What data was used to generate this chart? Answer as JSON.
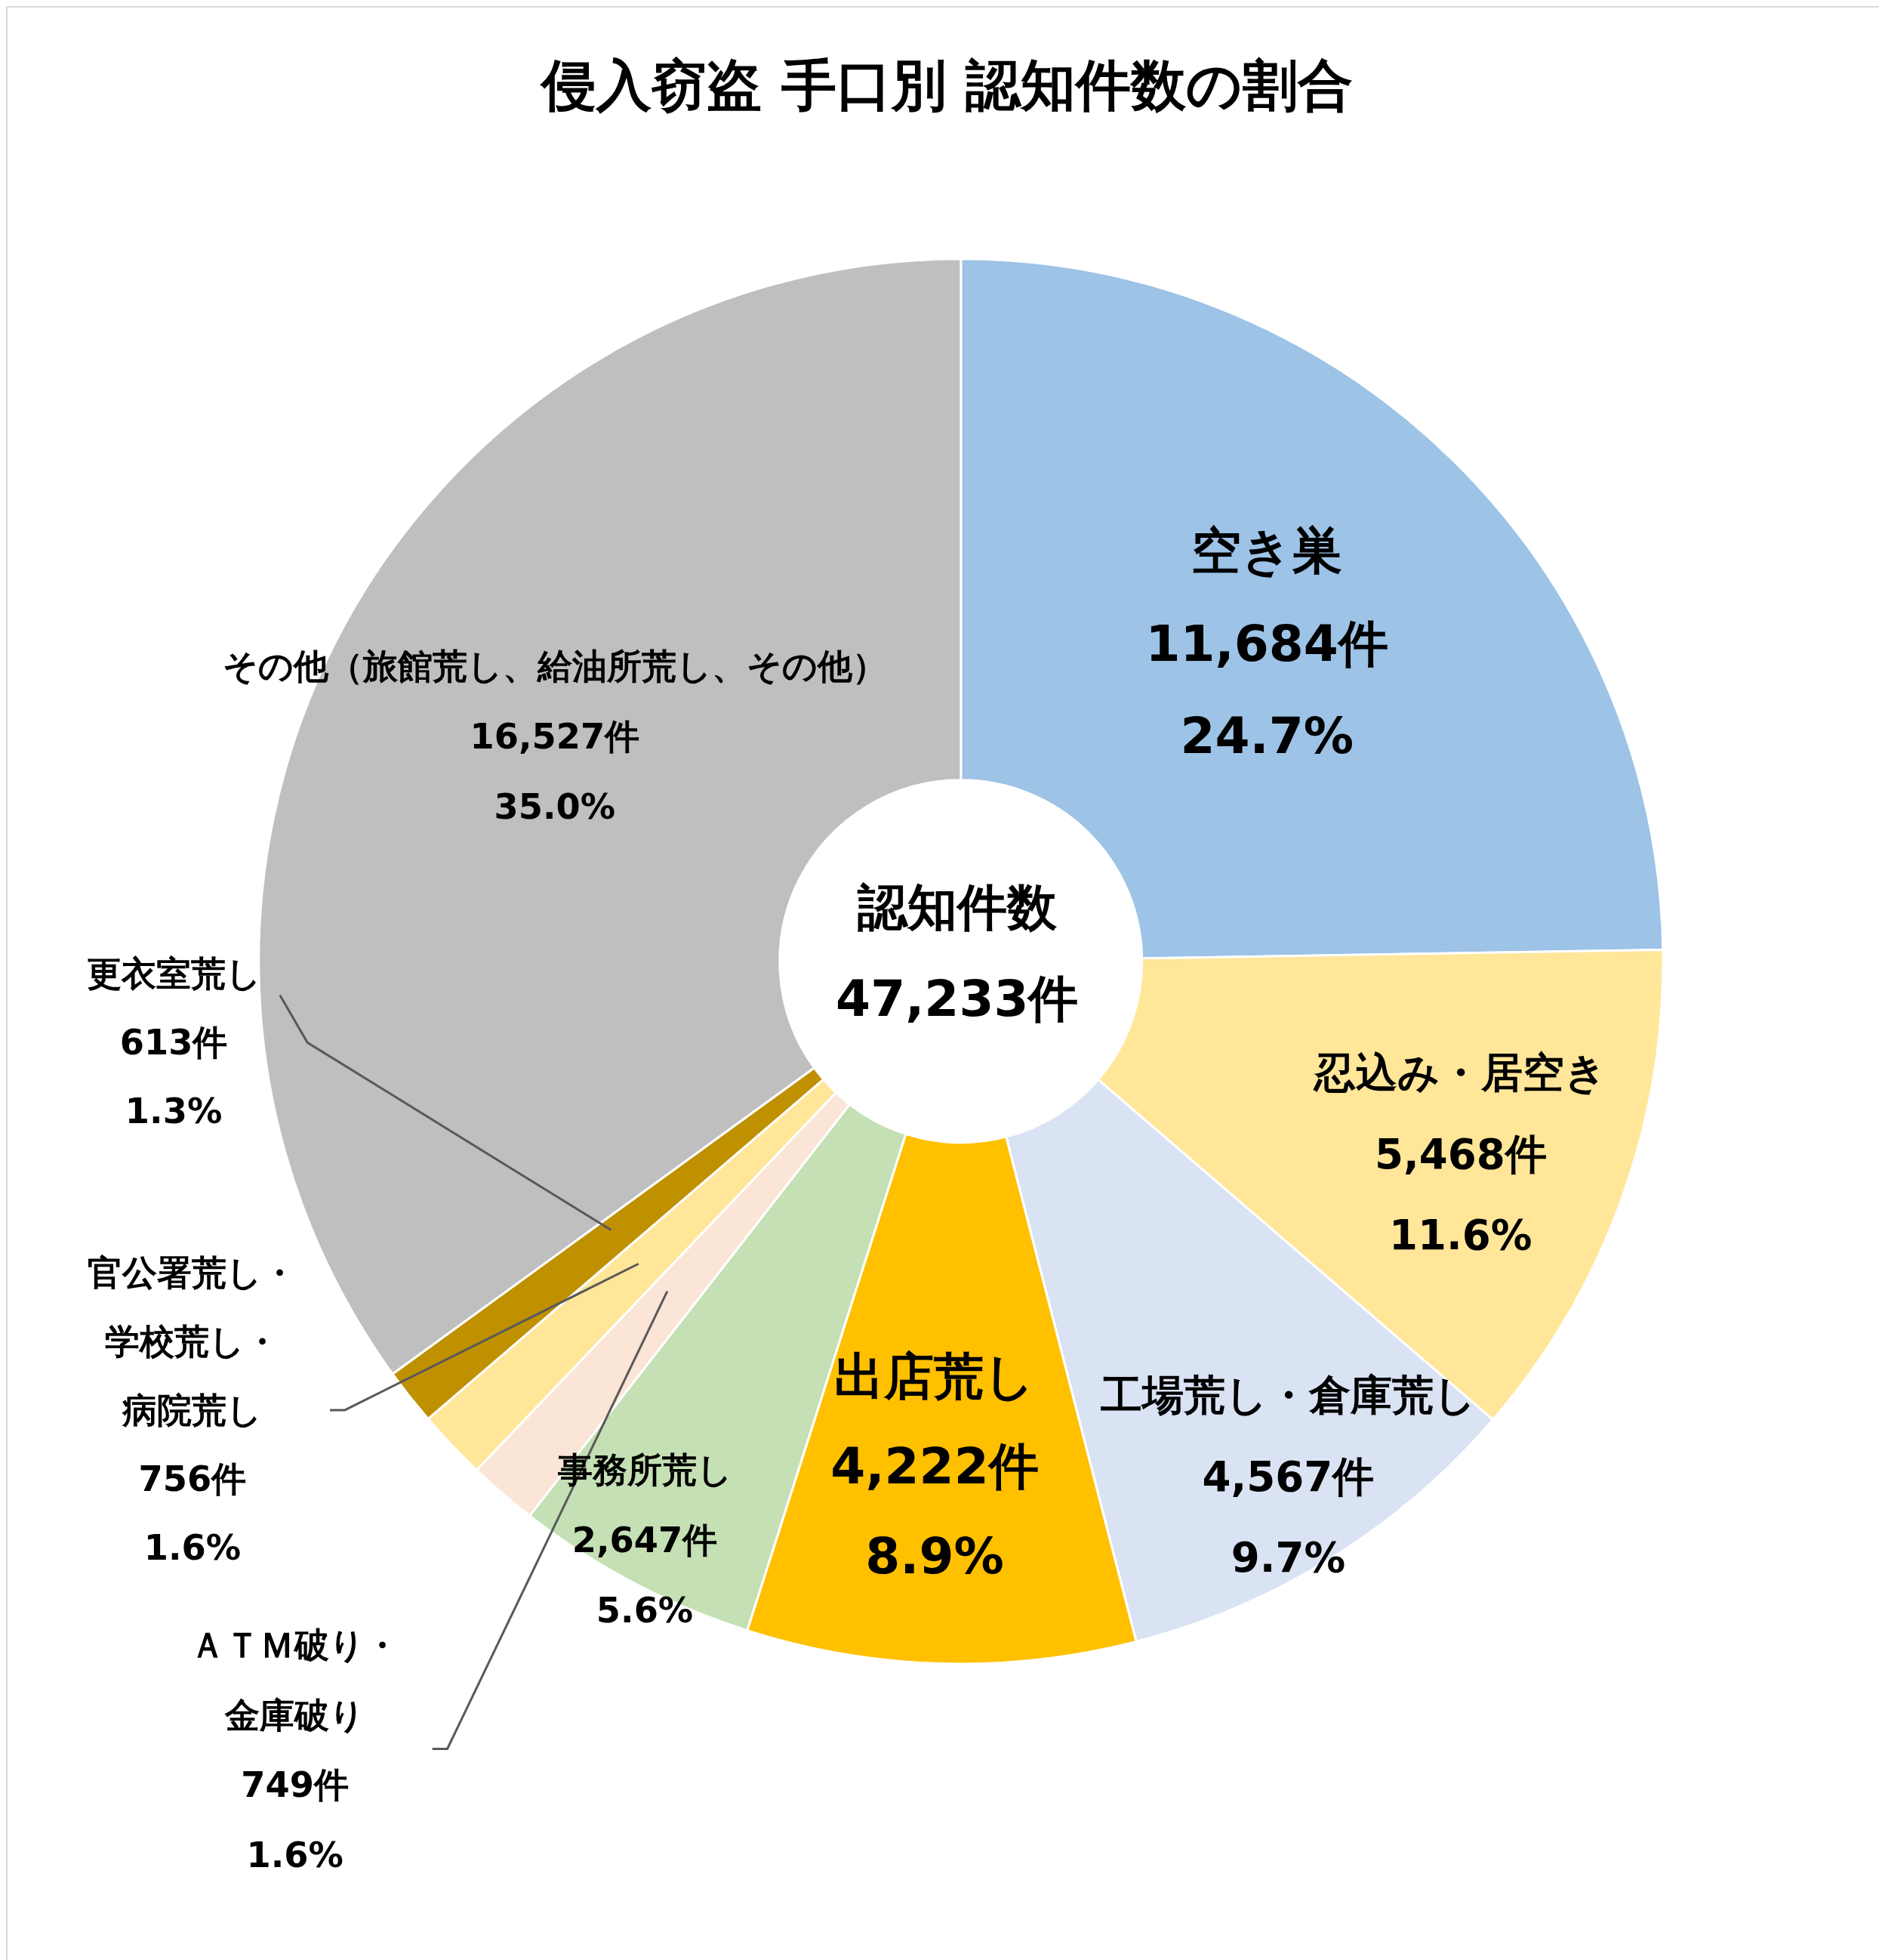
{
  "chart_data": {
    "type": "donut",
    "title": "侵入窃盗 手口別 認知件数の割合",
    "categories": [
      "空き巣",
      "忍込み・居空き",
      "工場荒し・倉庫荒し",
      "出店荒し",
      "事務所荒し",
      "ＡＴＭ破り・金庫破り",
      "官公署荒し・学校荒し・病院荒し",
      "更衣室荒し",
      "その他（旅館荒し、給油所荒し、その他）"
    ],
    "values": [
      11684,
      5468,
      4567,
      4222,
      2647,
      749,
      756,
      613,
      16527
    ],
    "colors": [
      "#9dc3e6",
      "#ffe699",
      "#dae3f3",
      "#ffc000",
      "#c5e0b4",
      "#fbe5d6",
      "#ffe699",
      "#bf9000",
      "#bfbfbf"
    ],
    "value_labels": [
      "11,684件\n24.7%",
      "5,468件\n11.6%",
      "4,567件\n9.7%",
      "4,222件\n8.9%",
      "2,647件\n5.6%",
      "749件\n1.6%",
      "756件\n1.6%",
      "613件\n1.3%",
      "16,527件\n35.0%"
    ],
    "annotations": [
      "認知件数",
      "47,233件"
    ]
  }
}
